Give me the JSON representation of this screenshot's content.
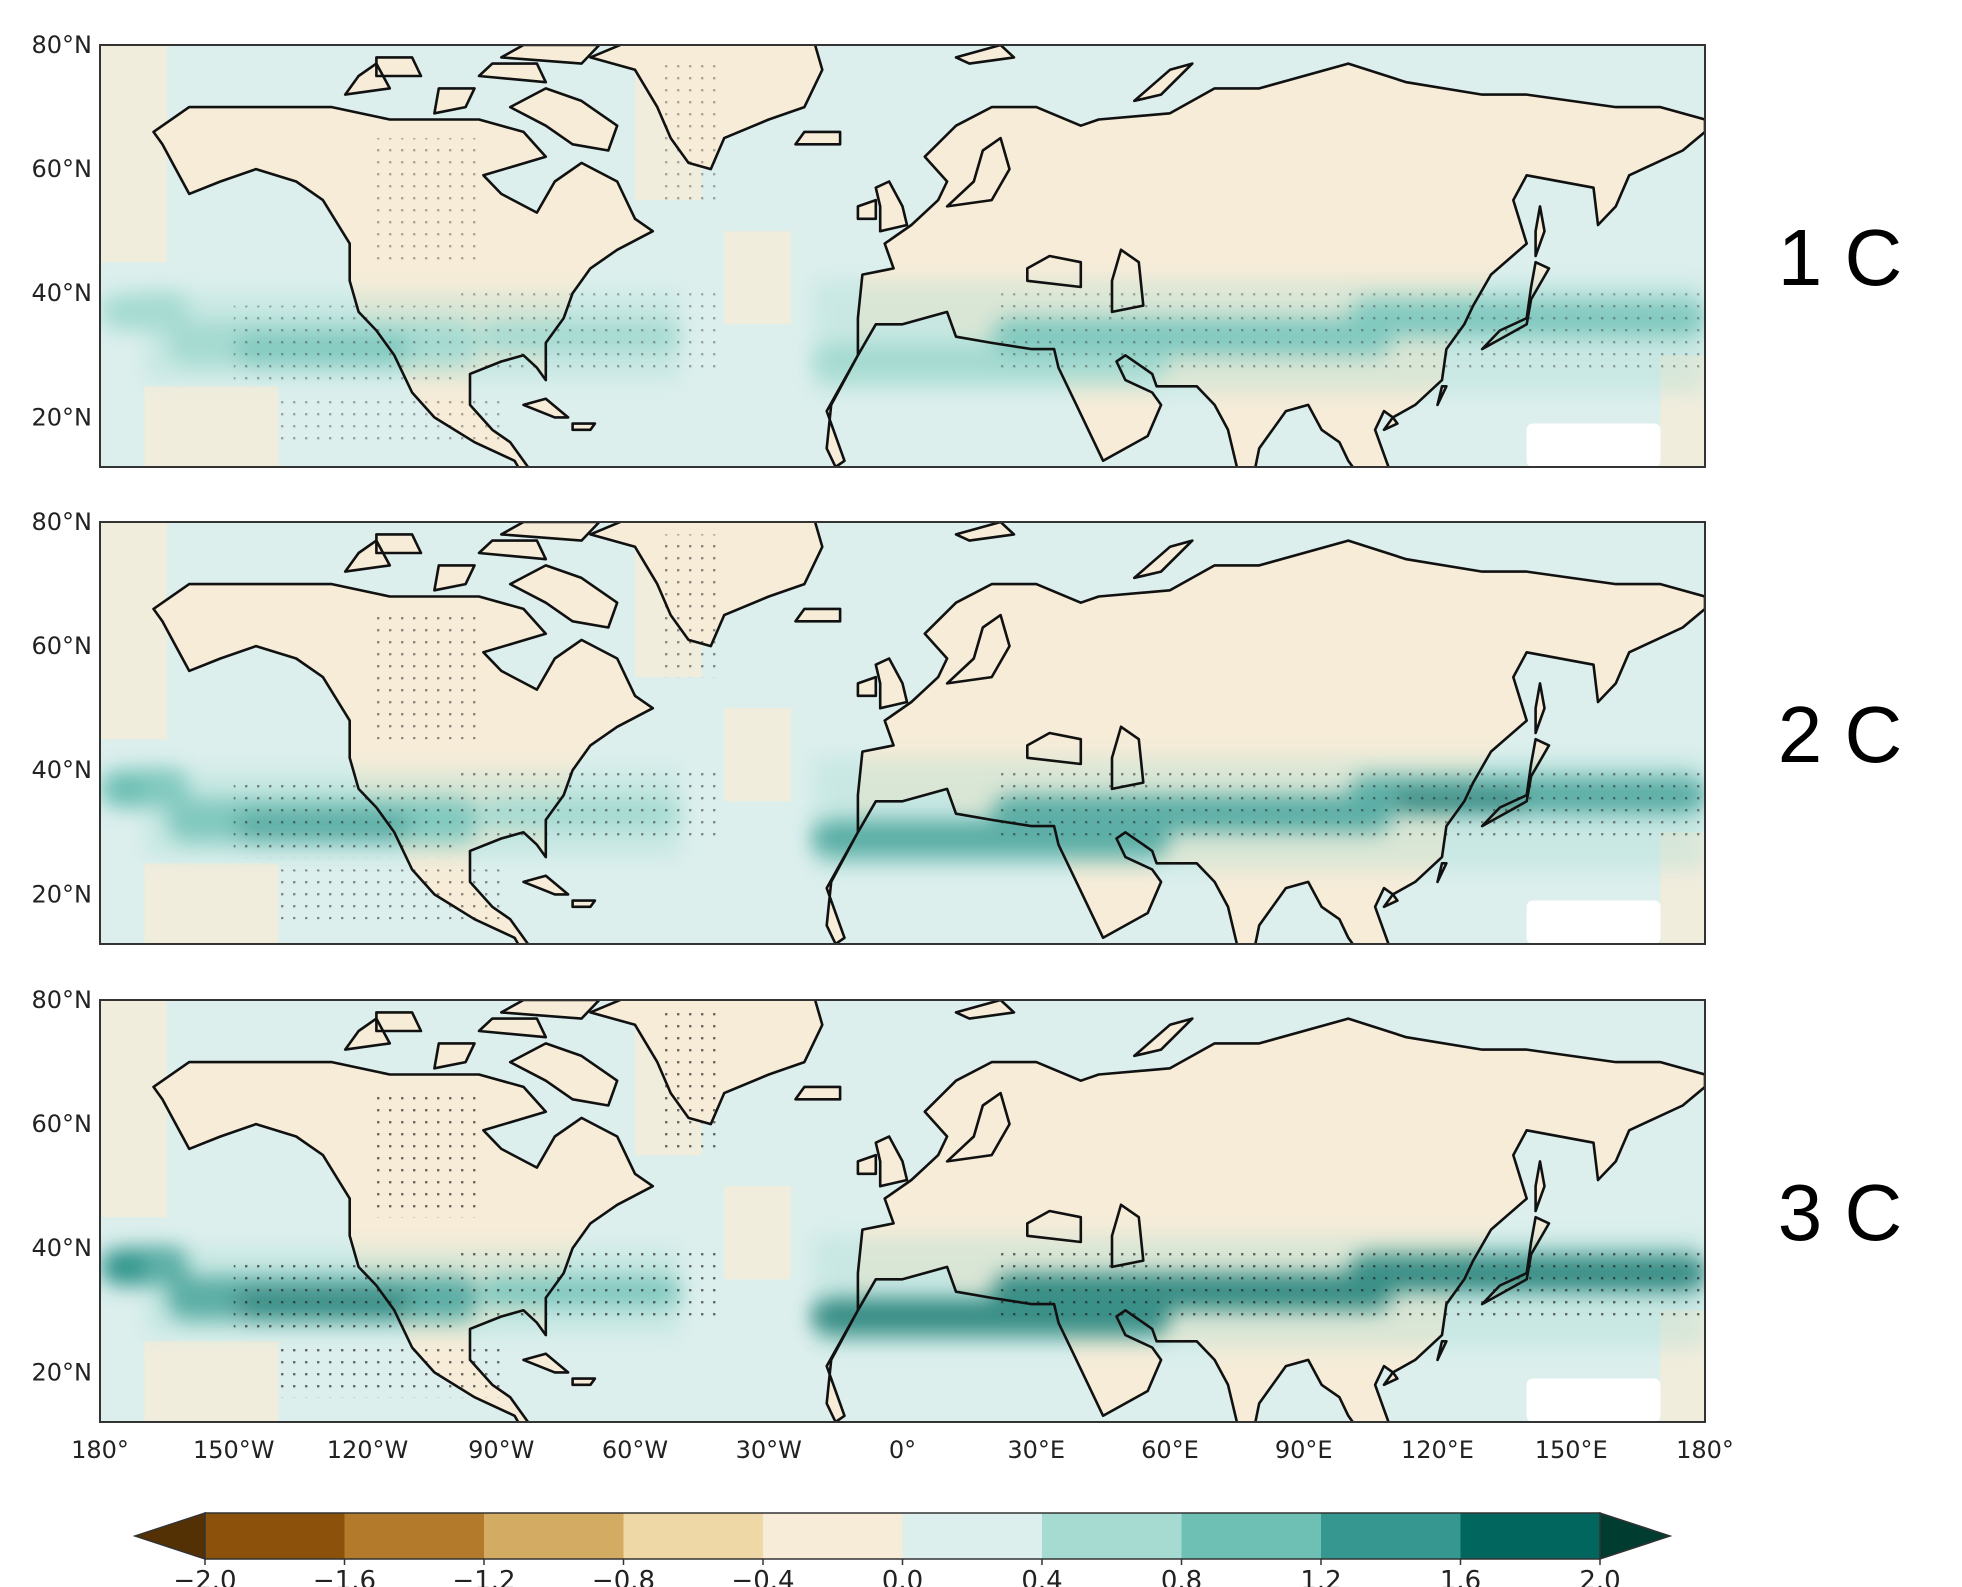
{
  "lat_labels": [
    "80°N",
    "60°N",
    "40°N",
    "20°N"
  ],
  "lat_values": [
    80,
    60,
    40,
    20
  ],
  "lat_range": [
    12,
    80
  ],
  "lon_range": [
    -180,
    180
  ],
  "lon_labels": [
    "180°",
    "150°W",
    "120°W",
    "90°W",
    "60°W",
    "30°W",
    "0°",
    "30°E",
    "60°E",
    "90°E",
    "120°E",
    "150°E",
    "180°"
  ],
  "lon_values": [
    -180,
    -150,
    -120,
    -90,
    -60,
    -30,
    0,
    30,
    60,
    90,
    120,
    150,
    180
  ],
  "panels": [
    {
      "label": "1 C",
      "band_strength": 0.9
    },
    {
      "label": "2 C",
      "band_strength": 1.5
    },
    {
      "label": "3 C",
      "band_strength": 2.1
    }
  ],
  "colorbar": {
    "tick_labels": [
      "−2.0",
      "−1.6",
      "−1.2",
      "−0.8",
      "−0.4",
      "0.0",
      "0.4",
      "0.8",
      "1.2",
      "1.6",
      "2.0"
    ],
    "tick_values": [
      -2.0,
      -1.6,
      -1.2,
      -0.8,
      -0.4,
      0.0,
      0.4,
      0.8,
      1.2,
      1.6,
      2.0
    ],
    "colors": [
      "#8c510a",
      "#b47a2c",
      "#d4ab63",
      "#eed9a6",
      "#f6ecd8",
      "#dcefed",
      "#a6dbd2",
      "#6ec0b5",
      "#35978f",
      "#01665e"
    ],
    "under_color": "#543005",
    "over_color": "#003c30"
  }
}
